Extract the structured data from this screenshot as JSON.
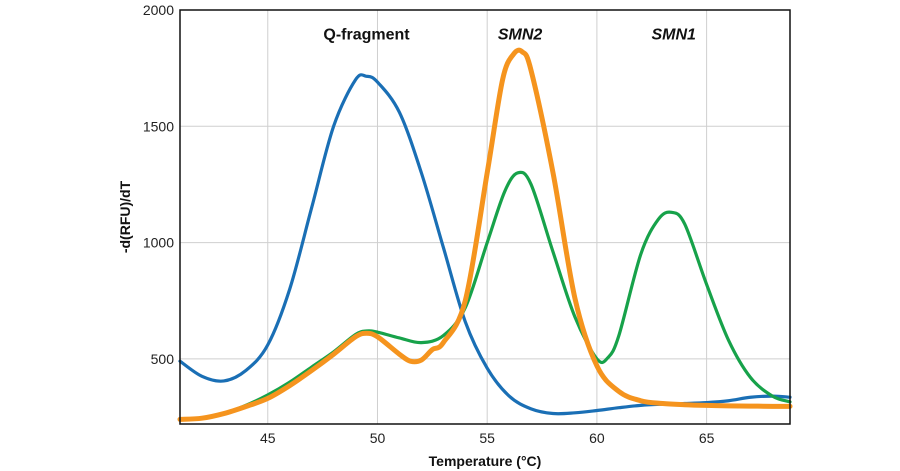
{
  "chart_data": {
    "type": "line",
    "xlabel": "Temperature (°C)",
    "ylabel": "-d(RFU)/dT",
    "xlim": [
      41,
      68.8
    ],
    "ylim": [
      220,
      2000
    ],
    "xticks": [
      45,
      50,
      55,
      60,
      65
    ],
    "yticks": [
      500,
      1000,
      1500,
      2000
    ],
    "grid": true,
    "annotations": [
      {
        "text": "Q-fragment",
        "x": 49.5,
        "y": 1900,
        "italic": false
      },
      {
        "text": "SMN2",
        "x": 56.5,
        "y": 1900,
        "italic": true
      },
      {
        "text": "SMN1",
        "x": 63.5,
        "y": 1900,
        "italic": true
      }
    ],
    "series": [
      {
        "color": "#1a6fb5",
        "width": 3.2,
        "points": [
          [
            41,
            490
          ],
          [
            42,
            425
          ],
          [
            43,
            405
          ],
          [
            44,
            450
          ],
          [
            45,
            560
          ],
          [
            46,
            800
          ],
          [
            47,
            1150
          ],
          [
            48,
            1500
          ],
          [
            49,
            1700
          ],
          [
            49.5,
            1715
          ],
          [
            50,
            1690
          ],
          [
            51,
            1560
          ],
          [
            52,
            1300
          ],
          [
            53,
            980
          ],
          [
            54,
            660
          ],
          [
            55,
            460
          ],
          [
            56,
            340
          ],
          [
            57,
            285
          ],
          [
            58,
            265
          ],
          [
            59,
            268
          ],
          [
            60,
            278
          ],
          [
            61,
            290
          ],
          [
            62,
            300
          ],
          [
            63,
            305
          ],
          [
            64,
            308
          ],
          [
            65,
            312
          ],
          [
            66,
            320
          ],
          [
            67,
            335
          ],
          [
            68,
            340
          ],
          [
            68.8,
            335
          ]
        ]
      },
      {
        "color": "#17a24a",
        "width": 3.2,
        "points": [
          [
            41,
            240
          ],
          [
            42,
            245
          ],
          [
            43,
            265
          ],
          [
            44,
            300
          ],
          [
            45,
            345
          ],
          [
            46,
            400
          ],
          [
            47,
            465
          ],
          [
            48,
            530
          ],
          [
            49,
            605
          ],
          [
            49.5,
            620
          ],
          [
            50,
            615
          ],
          [
            51,
            590
          ],
          [
            52,
            570
          ],
          [
            53,
            600
          ],
          [
            54,
            720
          ],
          [
            55,
            1000
          ],
          [
            55.8,
            1220
          ],
          [
            56.4,
            1300
          ],
          [
            57,
            1250
          ],
          [
            58,
            960
          ],
          [
            59,
            680
          ],
          [
            60,
            500
          ],
          [
            60.5,
            505
          ],
          [
            61,
            600
          ],
          [
            62,
            950
          ],
          [
            62.8,
            1100
          ],
          [
            63.4,
            1130
          ],
          [
            64,
            1080
          ],
          [
            65,
            820
          ],
          [
            66,
            580
          ],
          [
            67,
            420
          ],
          [
            68,
            340
          ],
          [
            68.8,
            315
          ]
        ]
      },
      {
        "color": "#f5941e",
        "width": 5,
        "points": [
          [
            41,
            240
          ],
          [
            42,
            245
          ],
          [
            43,
            265
          ],
          [
            44,
            295
          ],
          [
            45,
            330
          ],
          [
            46,
            385
          ],
          [
            47,
            450
          ],
          [
            48,
            520
          ],
          [
            49,
            595
          ],
          [
            49.5,
            610
          ],
          [
            50,
            595
          ],
          [
            51,
            520
          ],
          [
            51.5,
            490
          ],
          [
            52,
            495
          ],
          [
            52.5,
            540
          ],
          [
            53,
            570
          ],
          [
            54,
            750
          ],
          [
            55,
            1300
          ],
          [
            55.7,
            1700
          ],
          [
            56.2,
            1810
          ],
          [
            56.6,
            1820
          ],
          [
            57,
            1740
          ],
          [
            58,
            1300
          ],
          [
            59,
            760
          ],
          [
            60,
            470
          ],
          [
            61,
            360
          ],
          [
            62,
            320
          ],
          [
            63,
            308
          ],
          [
            64,
            303
          ],
          [
            65,
            300
          ],
          [
            66,
            298
          ],
          [
            67,
            297
          ],
          [
            68,
            296
          ],
          [
            68.8,
            296
          ]
        ]
      }
    ]
  }
}
